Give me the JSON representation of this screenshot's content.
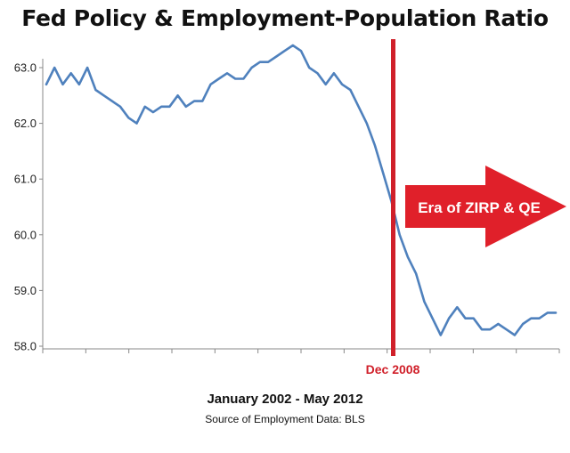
{
  "chart_data": {
    "type": "line",
    "title": "Fed Policy & Employment-Population Ratio",
    "xlabel": "January 2002 - May 2012",
    "source": "Source of Employment Data: BLS",
    "ylim": [
      58.0,
      63.0
    ],
    "yticks": [
      "63.0",
      "62.0",
      "61.0",
      "60.0",
      "59.0",
      "58.0"
    ],
    "ytick_values": [
      63.0,
      62.0,
      61.0,
      60.0,
      59.0,
      58.0
    ],
    "x_range": [
      "2002-01",
      "2012-05"
    ],
    "grid": false,
    "series": [
      {
        "color": "#4f81bd",
        "x": [
          "2002-01",
          "2002-03",
          "2002-05",
          "2002-07",
          "2002-09",
          "2002-11",
          "2003-01",
          "2003-03",
          "2003-05",
          "2003-07",
          "2003-09",
          "2003-11",
          "2004-01",
          "2004-03",
          "2004-05",
          "2004-07",
          "2004-09",
          "2004-11",
          "2005-01",
          "2005-03",
          "2005-05",
          "2005-07",
          "2005-09",
          "2005-11",
          "2006-01",
          "2006-03",
          "2006-05",
          "2006-07",
          "2006-09",
          "2006-11",
          "2007-01",
          "2007-03",
          "2007-05",
          "2007-07",
          "2007-09",
          "2007-11",
          "2008-01",
          "2008-03",
          "2008-05",
          "2008-07",
          "2008-09",
          "2008-11",
          "2009-01",
          "2009-03",
          "2009-05",
          "2009-07",
          "2009-09",
          "2009-11",
          "2010-01",
          "2010-03",
          "2010-05",
          "2010-07",
          "2010-09",
          "2010-11",
          "2011-01",
          "2011-03",
          "2011-05",
          "2011-07",
          "2011-09",
          "2011-11",
          "2012-01",
          "2012-03",
          "2012-05"
        ],
        "y": [
          62.7,
          63.0,
          62.7,
          62.9,
          62.7,
          63.0,
          62.6,
          62.5,
          62.4,
          62.3,
          62.1,
          62.0,
          62.3,
          62.2,
          62.3,
          62.3,
          62.5,
          62.3,
          62.4,
          62.4,
          62.7,
          62.8,
          62.9,
          62.8,
          62.8,
          63.0,
          63.1,
          63.1,
          63.2,
          63.3,
          63.4,
          63.3,
          63.0,
          62.9,
          62.7,
          62.9,
          62.7,
          62.6,
          62.3,
          62.0,
          61.6,
          61.1,
          60.6,
          60.0,
          59.6,
          59.3,
          58.8,
          58.5,
          58.2,
          58.5,
          58.7,
          58.5,
          58.5,
          58.3,
          58.3,
          58.4,
          58.3,
          58.2,
          58.4,
          58.5,
          58.5,
          58.6,
          58.6
        ]
      }
    ],
    "annotations": [
      {
        "type": "vline",
        "x": "2008-12",
        "label": "Dec 2008",
        "color": "#d0202a"
      },
      {
        "type": "arrow",
        "label": "Era of ZIRP & QE",
        "color": "#e0202a"
      }
    ]
  }
}
